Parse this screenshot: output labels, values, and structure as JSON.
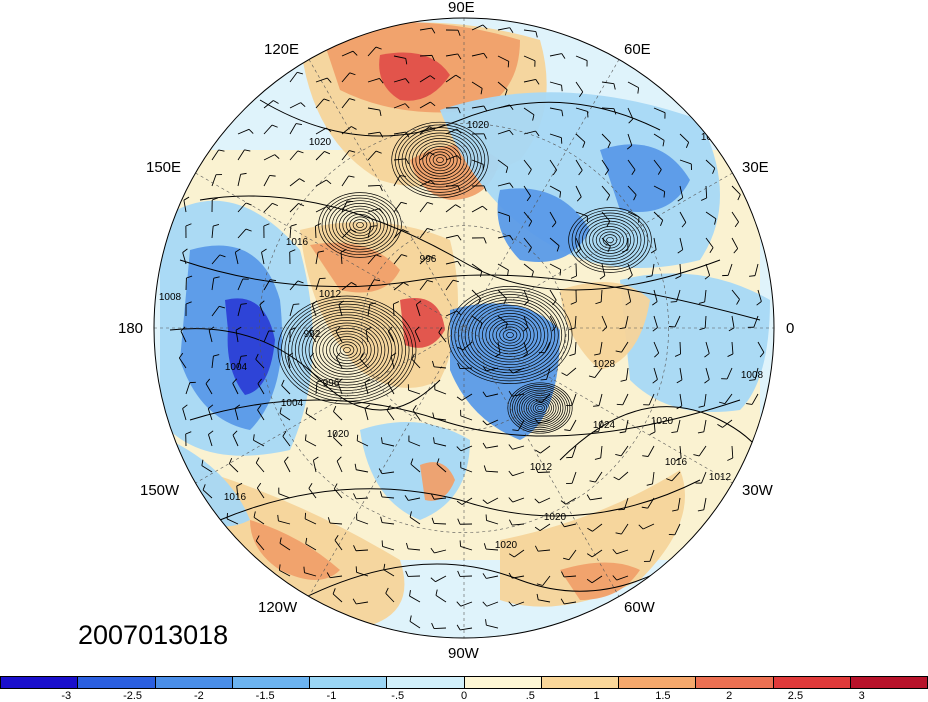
{
  "timestamp": "2007013018",
  "longitude_labels": {
    "e90": "90E",
    "e120": "120E",
    "e60": "60E",
    "e150": "150E",
    "e30": "30E",
    "lon180": "180",
    "lon0": "0",
    "w150": "150W",
    "w30": "30W",
    "w120": "120W",
    "w60": "60W",
    "w90": "90W"
  },
  "contour_labels": [
    "1020",
    "1020",
    "1008",
    "1016",
    "1012",
    "996",
    "992",
    "996",
    "1004",
    "1004",
    "1020",
    "1028",
    "1024",
    "1020",
    "1016",
    "1012",
    "1008",
    "1012",
    "1020",
    "1020",
    "1016",
    "1008"
  ],
  "colorbar": {
    "colors": [
      "#1a0fcc",
      "#2b5fe0",
      "#4a8ee8",
      "#6cb3f0",
      "#9bd6f5",
      "#d2f0fb",
      "#fdf6d4",
      "#fad79a",
      "#f5a86c",
      "#ec7052",
      "#e03a3a",
      "#b8122a"
    ],
    "ticks": [
      "-3",
      "-2.5",
      "-2",
      "-1.5",
      "-1",
      "-.5",
      "0",
      ".5",
      "1",
      "1.5",
      "2",
      "2.5",
      "3"
    ]
  },
  "map_colors": {
    "deep_blue": "#2b3fd6",
    "blue": "#5a9ae8",
    "light_blue": "#a6d8f6",
    "pale": "#dff3fb",
    "cream": "#fbf1cf",
    "tan": "#f6d49a",
    "orange": "#f0a06a",
    "red": "#e0504a",
    "dark_red": "#c2283a"
  }
}
